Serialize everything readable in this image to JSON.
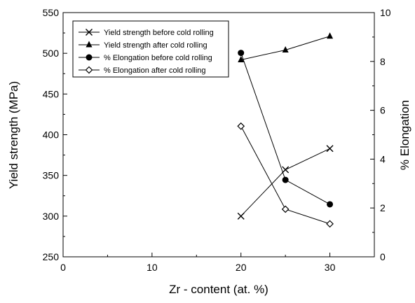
{
  "chart_data": {
    "type": "line",
    "title": "",
    "xlabel": "Zr - content (at. %)",
    "ylabel_left": "Yield strength (MPa)",
    "ylabel_right": "% Elongation",
    "xlim": [
      0,
      35
    ],
    "ylim_left": [
      250,
      550
    ],
    "ylim_right": [
      0,
      10
    ],
    "x_ticks": [
      "0",
      "10",
      "20",
      "30"
    ],
    "y_left_ticks": [
      "250",
      "300",
      "350",
      "400",
      "450",
      "500",
      "550"
    ],
    "y_right_ticks": [
      "0",
      "2",
      "4",
      "6",
      "8",
      "10"
    ],
    "grid": false,
    "legend_position": "top-left",
    "series": [
      {
        "name": "Yield strength before cold rolling",
        "axis": "left",
        "marker": "x",
        "x": [
          20,
          25,
          30
        ],
        "values": [
          300,
          357,
          383
        ]
      },
      {
        "name": "Yield strength after cold rolling",
        "axis": "left",
        "marker": "triangle",
        "x": [
          20,
          25,
          30
        ],
        "values": [
          492,
          504,
          521
        ]
      },
      {
        "name": "% Elongation before cold rolling",
        "axis": "right",
        "marker": "circle",
        "x": [
          20,
          25,
          30
        ],
        "values": [
          8.35,
          3.15,
          2.15
        ]
      },
      {
        "name": "% Elongation after cold rolling",
        "axis": "right",
        "marker": "diamond",
        "x": [
          20,
          25,
          30
        ],
        "values": [
          5.35,
          1.95,
          1.35
        ]
      }
    ]
  }
}
